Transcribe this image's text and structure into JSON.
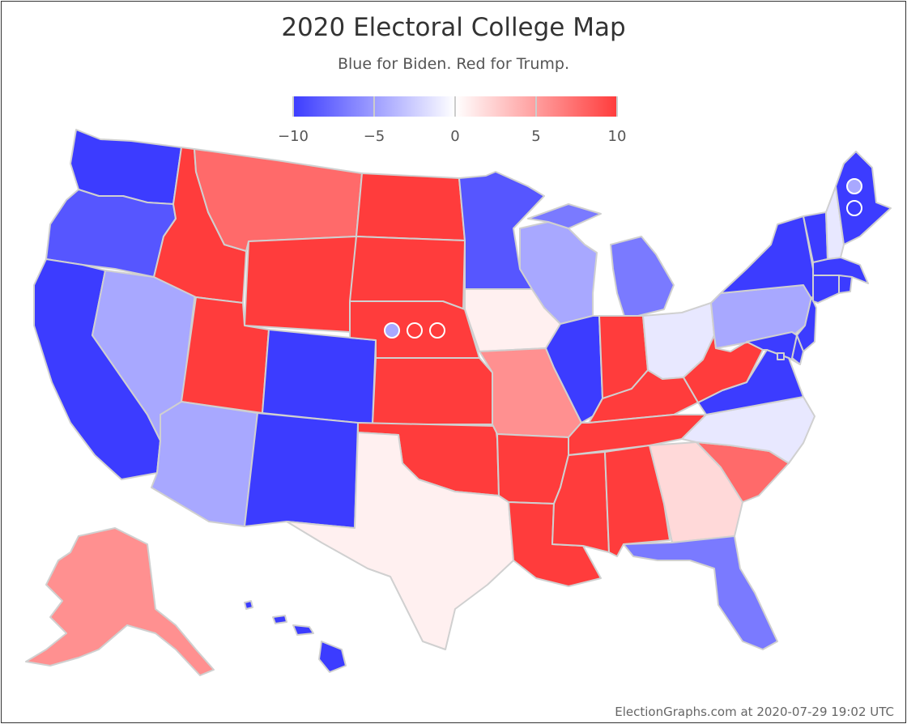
{
  "title": "2020 Electoral College Map",
  "subtitle": "Blue for Biden. Red for Trump.",
  "legend": {
    "min": -10,
    "max": 10,
    "ticks": [
      {
        "value": -10,
        "label": "−10"
      },
      {
        "value": -5,
        "label": "−5"
      },
      {
        "value": 0,
        "label": "0"
      },
      {
        "value": 5,
        "label": "5"
      },
      {
        "value": 10,
        "label": "10"
      }
    ],
    "colors": {
      "biden": "#3c3cff",
      "neutral": "#ffffff",
      "trump": "#ff3c3c"
    }
  },
  "footer": "ElectionGraphs.com at 2020-07-29 19:02 UTC",
  "colors": {
    "biden_strong": "#3c3cff",
    "biden_lean": "#5656ff",
    "biden_medium": "#7a7aff",
    "biden_weak": "#a8a8ff",
    "biden_tossup": "#e8e8ff",
    "trump_tossup": "#fff0f0",
    "trump_weak": "#ffd9d9",
    "trump_medium": "#ff9090",
    "trump_lean": "#ff6a6a",
    "trump_strong": "#ff3c3c",
    "border": "#d0d0d0"
  },
  "states": [
    {
      "code": "WA",
      "color": "biden_strong"
    },
    {
      "code": "OR",
      "color": "biden_lean"
    },
    {
      "code": "CA",
      "color": "biden_strong"
    },
    {
      "code": "NV",
      "color": "biden_weak"
    },
    {
      "code": "ID",
      "color": "trump_strong"
    },
    {
      "code": "MT",
      "color": "trump_lean"
    },
    {
      "code": "WY",
      "color": "trump_strong"
    },
    {
      "code": "UT",
      "color": "trump_strong"
    },
    {
      "code": "AZ",
      "color": "biden_weak"
    },
    {
      "code": "CO",
      "color": "biden_strong"
    },
    {
      "code": "NM",
      "color": "biden_strong"
    },
    {
      "code": "ND",
      "color": "trump_strong"
    },
    {
      "code": "SD",
      "color": "trump_strong"
    },
    {
      "code": "NE",
      "color": "trump_strong"
    },
    {
      "code": "KS",
      "color": "trump_strong"
    },
    {
      "code": "OK",
      "color": "trump_strong"
    },
    {
      "code": "TX",
      "color": "trump_tossup"
    },
    {
      "code": "MN",
      "color": "biden_lean"
    },
    {
      "code": "IA",
      "color": "trump_tossup"
    },
    {
      "code": "MO",
      "color": "trump_medium"
    },
    {
      "code": "AR",
      "color": "trump_strong"
    },
    {
      "code": "LA",
      "color": "trump_strong"
    },
    {
      "code": "WI",
      "color": "biden_weak"
    },
    {
      "code": "IL",
      "color": "biden_strong"
    },
    {
      "code": "MI",
      "color": "biden_medium"
    },
    {
      "code": "IN",
      "color": "trump_strong"
    },
    {
      "code": "OH",
      "color": "biden_tossup"
    },
    {
      "code": "KY",
      "color": "trump_strong"
    },
    {
      "code": "TN",
      "color": "trump_strong"
    },
    {
      "code": "MS",
      "color": "trump_strong"
    },
    {
      "code": "AL",
      "color": "trump_strong"
    },
    {
      "code": "GA",
      "color": "trump_weak"
    },
    {
      "code": "FL",
      "color": "biden_medium"
    },
    {
      "code": "SC",
      "color": "trump_lean"
    },
    {
      "code": "NC",
      "color": "biden_tossup"
    },
    {
      "code": "VA",
      "color": "biden_strong"
    },
    {
      "code": "WV",
      "color": "trump_strong"
    },
    {
      "code": "PA",
      "color": "biden_weak"
    },
    {
      "code": "NY",
      "color": "biden_strong"
    },
    {
      "code": "VT",
      "color": "biden_strong"
    },
    {
      "code": "NH",
      "color": "biden_tossup"
    },
    {
      "code": "ME",
      "color": "biden_strong"
    },
    {
      "code": "MA",
      "color": "biden_strong"
    },
    {
      "code": "CT",
      "color": "biden_strong"
    },
    {
      "code": "RI",
      "color": "biden_strong"
    },
    {
      "code": "NJ",
      "color": "biden_strong"
    },
    {
      "code": "DE",
      "color": "biden_strong"
    },
    {
      "code": "MD",
      "color": "biden_strong"
    },
    {
      "code": "DC",
      "color": "biden_strong"
    },
    {
      "code": "AK",
      "color": "trump_medium"
    },
    {
      "code": "HI",
      "color": "biden_strong"
    }
  ],
  "districts": [
    {
      "state": "NE",
      "district": "CD1",
      "color": "trump_strong"
    },
    {
      "state": "NE",
      "district": "CD2",
      "color": "biden_weak"
    },
    {
      "state": "NE",
      "district": "CD3",
      "color": "trump_strong"
    },
    {
      "state": "ME",
      "district": "CD1",
      "color": "biden_weak"
    },
    {
      "state": "ME",
      "district": "CD2",
      "color": "biden_strong"
    }
  ]
}
